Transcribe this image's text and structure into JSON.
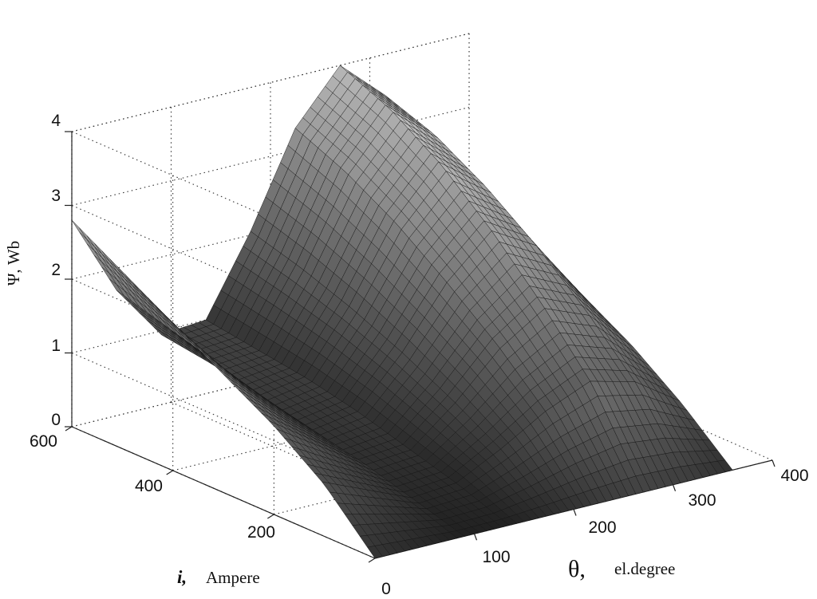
{
  "chart_data": {
    "type": "surface",
    "title": "",
    "zlabel": "Ψ,  Wb",
    "xlabel_symbol": "θ,",
    "xlabel_unit": "el.degree",
    "ylabel_symbol": "i,",
    "ylabel_unit": "Ampere",
    "xlim": [
      0,
      400
    ],
    "ylim": [
      0,
      600
    ],
    "zlim": [
      0,
      4
    ],
    "xticks": [
      "100",
      "200",
      "300",
      "400"
    ],
    "yticks": [
      "0",
      "200",
      "400",
      "600"
    ],
    "zticks": [
      "0",
      "1",
      "2",
      "3",
      "4"
    ],
    "grid": true,
    "colormap": "gray",
    "theta": [
      0,
      45,
      90,
      135,
      180,
      225,
      270,
      315,
      360
    ],
    "current": [
      0,
      100,
      200,
      300,
      400,
      500,
      600
    ],
    "flux": [
      [
        0.0,
        0.0,
        0.0,
        0.0,
        0.0,
        0.0,
        0.0,
        0.0,
        0.0
      ],
      [
        0.7,
        0.45,
        0.2,
        0.25,
        0.55,
        0.9,
        1.15,
        1.0,
        0.6
      ],
      [
        1.2,
        0.8,
        0.4,
        0.45,
        0.95,
        1.55,
        1.95,
        1.7,
        1.1
      ],
      [
        1.6,
        1.05,
        0.55,
        0.65,
        1.3,
        2.1,
        2.65,
        2.3,
        1.5
      ],
      [
        2.0,
        1.3,
        0.7,
        0.8,
        1.6,
        2.6,
        3.25,
        2.8,
        1.8
      ],
      [
        2.4,
        1.5,
        0.85,
        0.9,
        1.85,
        3.0,
        3.7,
        3.2,
        2.05
      ],
      [
        2.8,
        1.7,
        0.95,
        1.0,
        2.05,
        3.3,
        4.0,
        3.45,
        2.2
      ]
    ]
  }
}
